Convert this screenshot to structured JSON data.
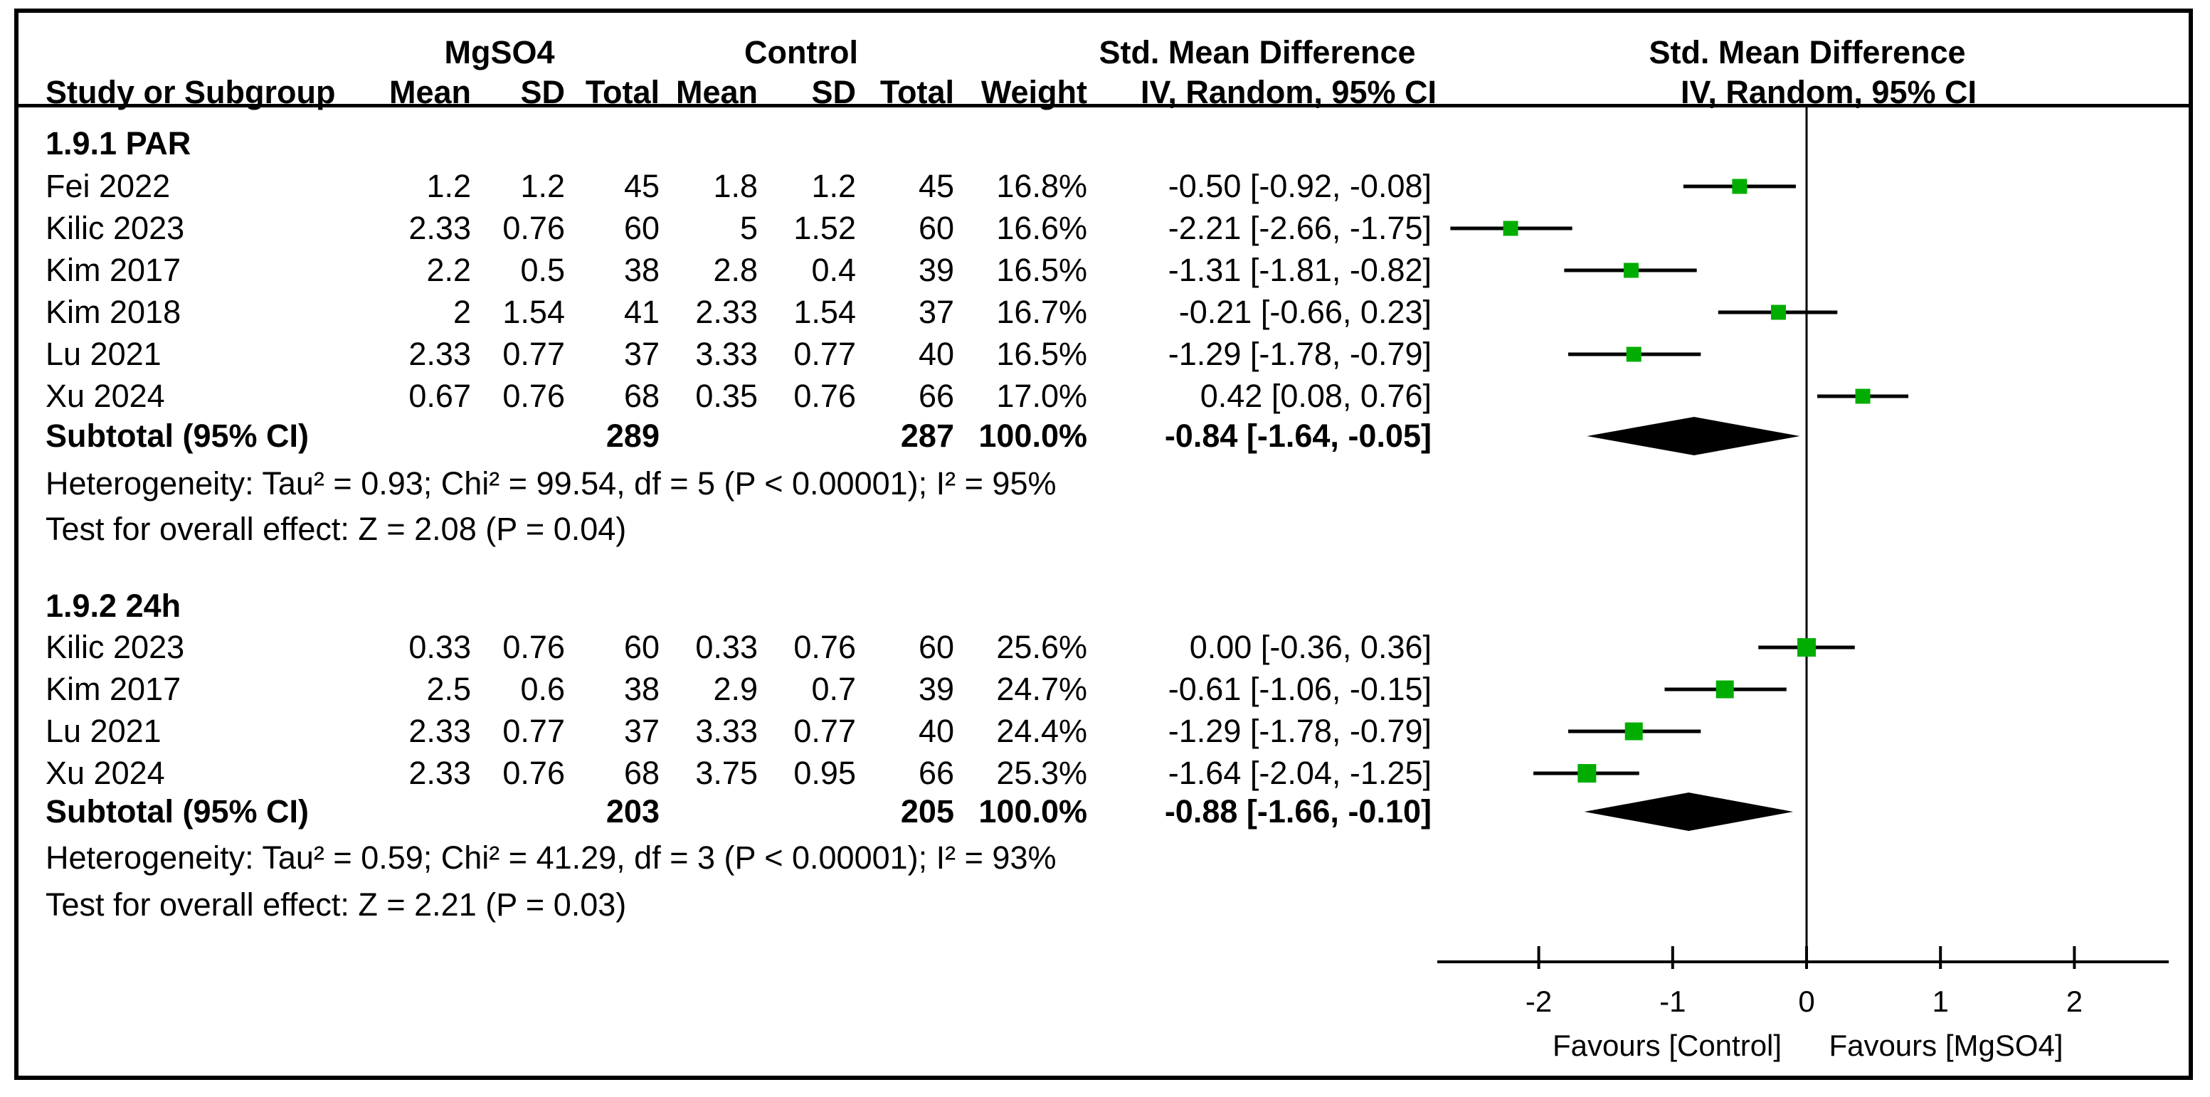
{
  "header": {
    "group_mgso4": "MgSO4",
    "group_control": "Control",
    "smd_text_col": "Std. Mean Difference",
    "smd_plot_col": "Std. Mean Difference",
    "iv_text_col": "IV, Random, 95% CI",
    "iv_plot_col": "IV, Random, 95% CI",
    "cols": {
      "study": "Study or Subgroup",
      "mean": "Mean",
      "sd": "SD",
      "total": "Total",
      "weight": "Weight"
    }
  },
  "chart_data": {
    "type": "forest",
    "effect_measure": "Std. Mean Difference",
    "method": "IV, Random, 95% CI",
    "marker_color": "#00AD00",
    "axis": {
      "tick_values": [
        -2,
        -1,
        0,
        1,
        2
      ],
      "tick_labels": [
        "-2",
        "-1",
        "0",
        "1",
        "2"
      ],
      "min": -2.76,
      "max": 2.7,
      "favours_left": "Favours [Control]",
      "favours_right": "Favours [MgSO4]"
    },
    "sections": [
      {
        "label": "1.9.1 PAR",
        "studies": [
          {
            "name": "Fei 2022",
            "mean1": "1.2",
            "sd1": "1.2",
            "total1": "45",
            "mean2": "1.8",
            "sd2": "1.2",
            "total2": "45",
            "weight": "16.8%",
            "weight_value": 16.8,
            "smd": -0.5,
            "lo": -0.92,
            "hi": -0.08,
            "ci_text": "-0.50 [-0.92, -0.08]"
          },
          {
            "name": "Kilic 2023",
            "mean1": "2.33",
            "sd1": "0.76",
            "total1": "60",
            "mean2": "5",
            "sd2": "1.52",
            "total2": "60",
            "weight": "16.6%",
            "weight_value": 16.6,
            "smd": -2.21,
            "lo": -2.66,
            "hi": -1.75,
            "ci_text": "-2.21 [-2.66, -1.75]"
          },
          {
            "name": "Kim 2017",
            "mean1": "2.2",
            "sd1": "0.5",
            "total1": "38",
            "mean2": "2.8",
            "sd2": "0.4",
            "total2": "39",
            "weight": "16.5%",
            "weight_value": 16.5,
            "smd": -1.31,
            "lo": -1.81,
            "hi": -0.82,
            "ci_text": "-1.31 [-1.81, -0.82]"
          },
          {
            "name": "Kim 2018",
            "mean1": "2",
            "sd1": "1.54",
            "total1": "41",
            "mean2": "2.33",
            "sd2": "1.54",
            "total2": "37",
            "weight": "16.7%",
            "weight_value": 16.7,
            "smd": -0.21,
            "lo": -0.66,
            "hi": 0.23,
            "ci_text": "-0.21 [-0.66, 0.23]"
          },
          {
            "name": "Lu 2021",
            "mean1": "2.33",
            "sd1": "0.77",
            "total1": "37",
            "mean2": "3.33",
            "sd2": "0.77",
            "total2": "40",
            "weight": "16.5%",
            "weight_value": 16.5,
            "smd": -1.29,
            "lo": -1.78,
            "hi": -0.79,
            "ci_text": "-1.29 [-1.78, -0.79]"
          },
          {
            "name": "Xu 2024",
            "mean1": "0.67",
            "sd1": "0.76",
            "total1": "68",
            "mean2": "0.35",
            "sd2": "0.76",
            "total2": "66",
            "weight": "17.0%",
            "weight_value": 17.0,
            "smd": 0.42,
            "lo": 0.08,
            "hi": 0.76,
            "ci_text": "0.42 [0.08, 0.76]"
          }
        ],
        "subtotal": {
          "label": "Subtotal (95% CI)",
          "total1": "289",
          "total2": "287",
          "weight": "100.0%",
          "smd": -0.84,
          "lo": -1.64,
          "hi": -0.05,
          "ci_text": "-0.84 [-1.64, -0.05]"
        },
        "heterogeneity": "Heterogeneity: Tau² = 0.93; Chi² = 99.54, df = 5 (P < 0.00001); I² = 95%",
        "overall_effect": "Test for overall effect: Z = 2.08 (P = 0.04)"
      },
      {
        "label": "1.9.2 24h",
        "studies": [
          {
            "name": "Kilic 2023",
            "mean1": "0.33",
            "sd1": "0.76",
            "total1": "60",
            "mean2": "0.33",
            "sd2": "0.76",
            "total2": "60",
            "weight": "25.6%",
            "weight_value": 25.6,
            "smd": 0.0,
            "lo": -0.36,
            "hi": 0.36,
            "ci_text": "0.00 [-0.36, 0.36]"
          },
          {
            "name": "Kim 2017",
            "mean1": "2.5",
            "sd1": "0.6",
            "total1": "38",
            "mean2": "2.9",
            "sd2": "0.7",
            "total2": "39",
            "weight": "24.7%",
            "weight_value": 24.7,
            "smd": -0.61,
            "lo": -1.06,
            "hi": -0.15,
            "ci_text": "-0.61 [-1.06, -0.15]"
          },
          {
            "name": "Lu 2021",
            "mean1": "2.33",
            "sd1": "0.77",
            "total1": "37",
            "mean2": "3.33",
            "sd2": "0.77",
            "total2": "40",
            "weight": "24.4%",
            "weight_value": 24.4,
            "smd": -1.29,
            "lo": -1.78,
            "hi": -0.79,
            "ci_text": "-1.29 [-1.78, -0.79]"
          },
          {
            "name": "Xu 2024",
            "mean1": "2.33",
            "sd1": "0.76",
            "total1": "68",
            "mean2": "3.75",
            "sd2": "0.95",
            "total2": "66",
            "weight": "25.3%",
            "weight_value": 25.3,
            "smd": -1.64,
            "lo": -2.04,
            "hi": -1.25,
            "ci_text": "-1.64 [-2.04, -1.25]"
          }
        ],
        "subtotal": {
          "label": "Subtotal (95% CI)",
          "total1": "203",
          "total2": "205",
          "weight": "100.0%",
          "smd": -0.88,
          "lo": -1.66,
          "hi": -0.1,
          "ci_text": "-0.88 [-1.66, -0.10]"
        },
        "heterogeneity": "Heterogeneity: Tau² = 0.59; Chi² = 41.29, df = 3 (P < 0.00001); I² = 93%",
        "overall_effect": "Test for overall effect: Z = 2.21 (P = 0.03)"
      }
    ]
  }
}
